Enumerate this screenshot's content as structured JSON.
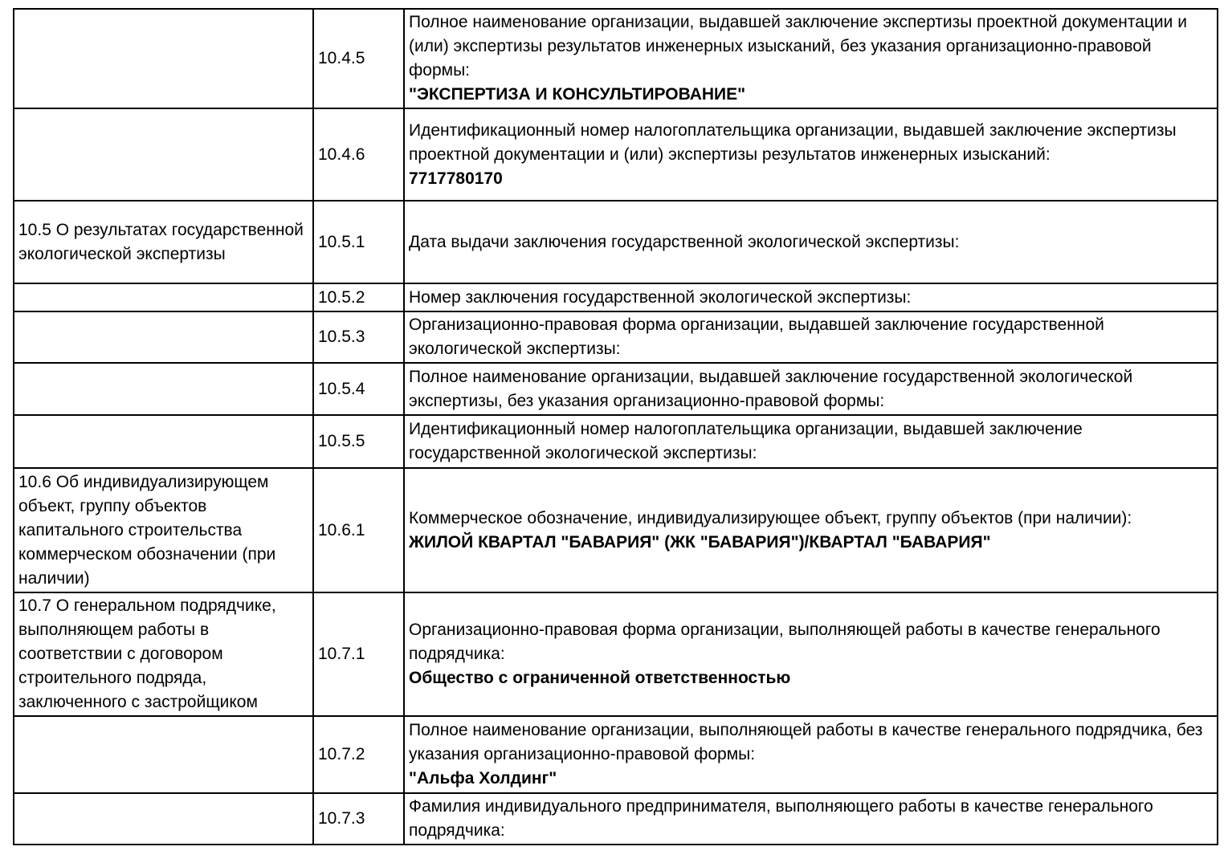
{
  "document": {
    "kind": "project-declaration-table",
    "language": "ru"
  },
  "colors": {
    "background": "#ffffff",
    "border": "#000000",
    "text": "#000000"
  },
  "table": {
    "columns": [
      "section",
      "item_number",
      "description"
    ],
    "rows": [
      {
        "section": "",
        "num": "10.4.5",
        "label": "Полное наименование организации, выдавшей заключение экспертизы проектной документации и (или) экспертизы результатов инженерных изысканий, без указания организационно-правовой формы:",
        "value": "\"ЭКСПЕРТИЗА И КОНСУЛЬТИРОВАНИЕ\""
      },
      {
        "section": "",
        "num": "10.4.6",
        "label": "Идентификационный номер налогоплательщика организации, выдавшей заключение экспертизы проектной документации и (или) экспертизы результатов инженерных изысканий:",
        "value": "7717780170"
      },
      {
        "section": "10.5 О результатах государственной экологической экспертизы",
        "num": "10.5.1",
        "label": "Дата выдачи заключения государственной экологической экспертизы:",
        "value": ""
      },
      {
        "section": "",
        "num": "10.5.2",
        "label": "Номер заключения государственной экологической экспертизы:",
        "value": ""
      },
      {
        "section": "",
        "num": "10.5.3",
        "label": "Организационно-правовая форма организации, выдавшей заключение государственной экологической экспертизы:",
        "value": ""
      },
      {
        "section": "",
        "num": "10.5.4",
        "label": "Полное наименование организации, выдавшей заключение государственной экологической экспертизы, без указания организационно-правовой формы:",
        "value": ""
      },
      {
        "section": "",
        "num": "10.5.5",
        "label": "Идентификационный номер налогоплательщика организации, выдавшей заключение государственной экологической экспертизы:",
        "value": ""
      },
      {
        "section": "10.6 Об индивидуализирующем объект, группу объектов капитального строительства коммерческом обозначении (при наличии)",
        "num": "10.6.1",
        "label": "Коммерческое обозначение, индивидуализирующее объект, группу объектов (при наличии):",
        "value": "ЖИЛОЙ КВАРТАЛ \"БАВАРИЯ\" (ЖК \"БАВАРИЯ\")/КВАРТАЛ \"БАВАРИЯ\""
      },
      {
        "section": "10.7 О генеральном подрядчике, выполняющем работы в соответствии с договором строительного подряда, заключенного с застройщиком",
        "num": "10.7.1",
        "label": "Организационно-правовая форма организации, выполняющей работы в качестве генерального подрядчика:",
        "value": "Общество с ограниченной ответственностью"
      },
      {
        "section": "",
        "num": "10.7.2",
        "label": "Полное наименование организации, выполняющей работы в качестве генерального подрядчика, без указания организационно-правовой формы:",
        "value": "\"Альфа Холдинг\""
      },
      {
        "section": "",
        "num": "10.7.3",
        "label": "Фамилия индивидуального предпринимателя, выполняющего работы в качестве генерального подрядчика:",
        "value": ""
      }
    ]
  }
}
